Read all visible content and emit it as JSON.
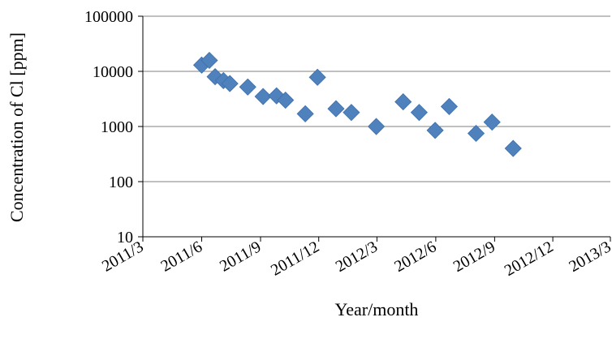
{
  "chart_data": {
    "type": "scatter",
    "title": "",
    "xlabel": "Year/month",
    "ylabel": "Concentration of Cl [ppm]",
    "y_scale": "log",
    "ylim": [
      10,
      100000
    ],
    "xlim": [
      "2011-03",
      "2013-03"
    ],
    "grid": {
      "y_major": true,
      "x_major": false
    },
    "legend": "none",
    "marker": {
      "shape": "diamond",
      "color": "#4F81BD"
    },
    "x_ticks": [
      "2011/3",
      "2011/6",
      "2011/9",
      "2011/12",
      "2012/3",
      "2012/6",
      "2012/9",
      "2012/12",
      "2013/3"
    ],
    "y_ticks": [
      "10",
      "100",
      "1000",
      "10000",
      "100000"
    ],
    "points": [
      {
        "x": "2011-06-01",
        "y": 13000
      },
      {
        "x": "2011-06-13",
        "y": 15800
      },
      {
        "x": "2011-06-22",
        "y": 8000
      },
      {
        "x": "2011-07-05",
        "y": 6800
      },
      {
        "x": "2011-07-15",
        "y": 6000
      },
      {
        "x": "2011-08-12",
        "y": 5200
      },
      {
        "x": "2011-09-05",
        "y": 3500
      },
      {
        "x": "2011-09-26",
        "y": 3600
      },
      {
        "x": "2011-10-10",
        "y": 3000
      },
      {
        "x": "2011-11-10",
        "y": 1700
      },
      {
        "x": "2011-11-29",
        "y": 7800
      },
      {
        "x": "2011-12-28",
        "y": 2100
      },
      {
        "x": "2012-01-21",
        "y": 1800
      },
      {
        "x": "2012-02-29",
        "y": 1000
      },
      {
        "x": "2012-04-11",
        "y": 2800
      },
      {
        "x": "2012-05-06",
        "y": 1800
      },
      {
        "x": "2012-05-31",
        "y": 850
      },
      {
        "x": "2012-06-22",
        "y": 2300
      },
      {
        "x": "2012-08-03",
        "y": 750
      },
      {
        "x": "2012-08-28",
        "y": 1200
      },
      {
        "x": "2012-09-30",
        "y": 400
      }
    ]
  }
}
